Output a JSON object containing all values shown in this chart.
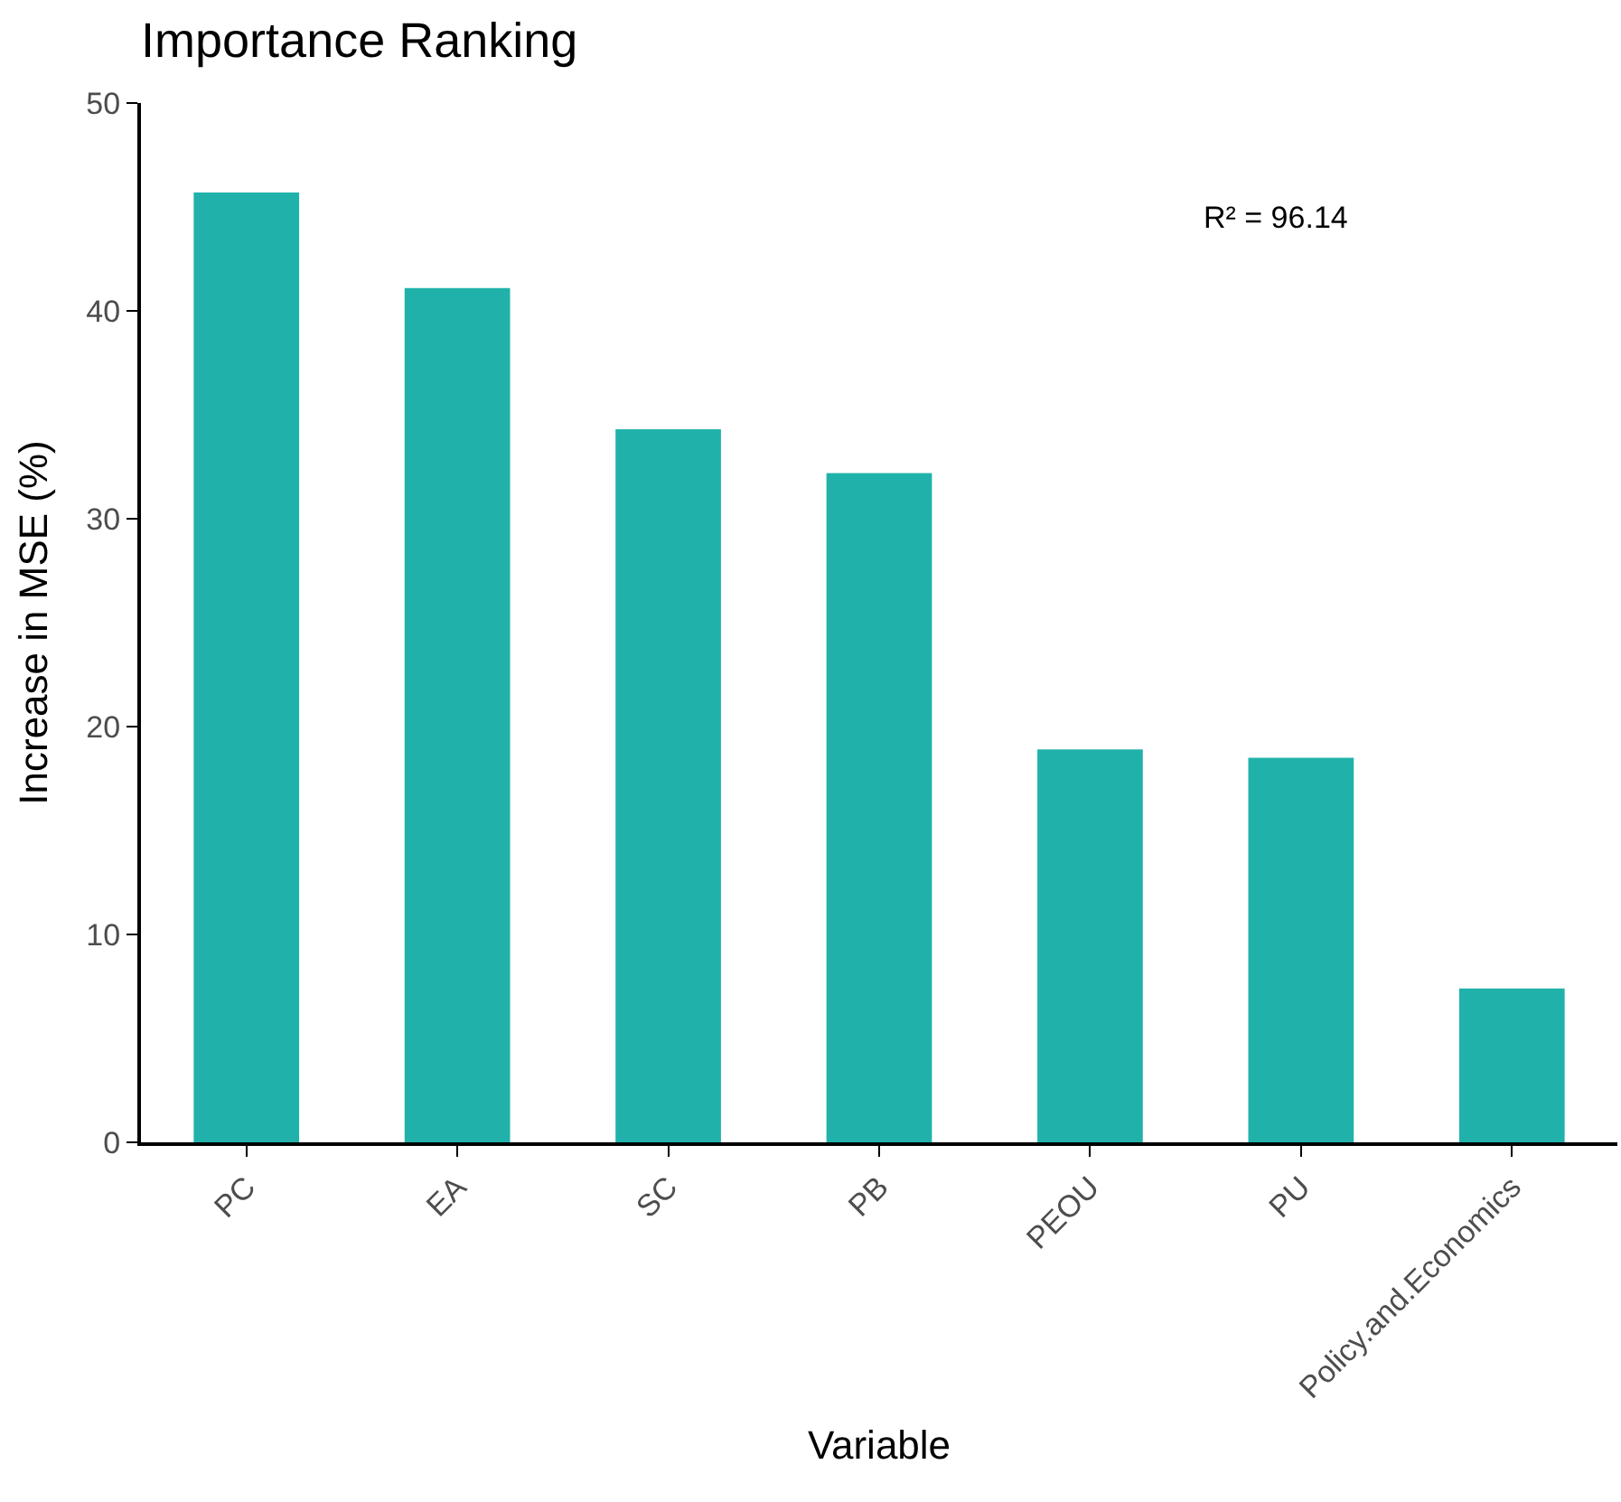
{
  "chart_data": {
    "type": "bar",
    "title": "Importance Ranking",
    "xlabel": "Variable",
    "ylabel": "Increase in MSE (%)",
    "categories": [
      "PC",
      "EA",
      "SC",
      "PB",
      "PEOU",
      "PU",
      "Policy.and.Economics"
    ],
    "values": [
      45.7,
      41.1,
      34.3,
      32.2,
      18.9,
      18.5,
      7.4
    ],
    "color": "#20b2aa",
    "ylim": [
      0,
      50
    ],
    "yticks": [
      0,
      10,
      20,
      30,
      40,
      50
    ],
    "legend": false,
    "annotations": [
      "R² = 96.14"
    ]
  }
}
